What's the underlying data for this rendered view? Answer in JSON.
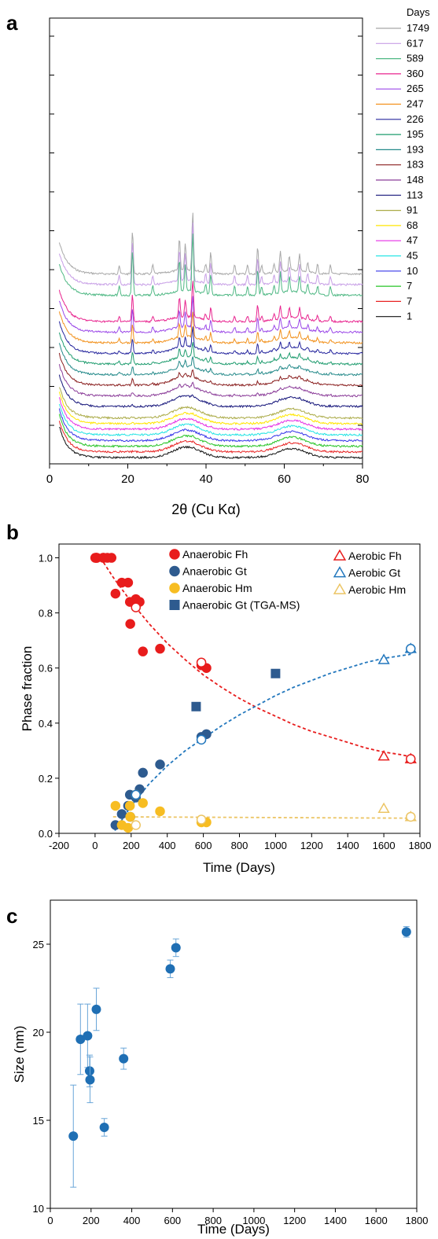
{
  "panels": [
    {
      "label": "a"
    },
    {
      "label": "b"
    },
    {
      "label": "c"
    }
  ],
  "chart_data": [
    {
      "type": "line",
      "panel": "a",
      "xlabel": "2θ (Cu Kα)",
      "ylabel": "",
      "xlim": [
        0,
        80
      ],
      "xticks": [
        0,
        20,
        40,
        60,
        80
      ],
      "legend_title": "Days",
      "legend_placement": "right",
      "series": [
        {
          "name": "1749",
          "color": "#a8a8a8"
        },
        {
          "name": "617",
          "color": "#c79ee6"
        },
        {
          "name": "589",
          "color": "#4fb884"
        },
        {
          "name": "360",
          "color": "#e8238e"
        },
        {
          "name": "265",
          "color": "#9b48e8"
        },
        {
          "name": "247",
          "color": "#f2911c"
        },
        {
          "name": "226",
          "color": "#26269e"
        },
        {
          "name": "195",
          "color": "#1e9c6e"
        },
        {
          "name": "193",
          "color": "#258a8a"
        },
        {
          "name": "183",
          "color": "#8a1f1f"
        },
        {
          "name": "148",
          "color": "#8b3d99"
        },
        {
          "name": "113",
          "color": "#15157a"
        },
        {
          "name": "91",
          "color": "#aaaa46"
        },
        {
          "name": "68",
          "color": "#ffe600"
        },
        {
          "name": "47",
          "color": "#e52ee5"
        },
        {
          "name": "45",
          "color": "#24e4e4"
        },
        {
          "name": "10",
          "color": "#3535e8"
        },
        {
          "name": "7",
          "color": "#27c427"
        },
        {
          "name": "7",
          "color": "#e82323"
        },
        {
          "name": "1",
          "color": "#111111"
        }
      ],
      "peaks_2theta": [
        17.8,
        21.2,
        26.4,
        33.2,
        34.7,
        36.6,
        39.9,
        41.2,
        47.3,
        50.6,
        53.2,
        54.2,
        57.4,
        59.0,
        61.3,
        63.9,
        66.0,
        68.5,
        71.8
      ]
    },
    {
      "type": "scatter",
      "panel": "b",
      "xlabel": "Time (Days)",
      "ylabel": "Phase fraction",
      "xlim": [
        -200,
        1800
      ],
      "ylim": [
        0,
        1.05
      ],
      "xticks": [
        -200,
        0,
        200,
        400,
        600,
        800,
        1000,
        1200,
        1400,
        1600,
        1800
      ],
      "yticks": [
        0.0,
        0.2,
        0.4,
        0.6,
        0.8,
        1.0
      ],
      "ytick_labels": [
        "0.0",
        "0.2",
        "0.4",
        "0.6",
        "0.8",
        "1.0"
      ],
      "legend_placement": "top-right",
      "series": [
        {
          "name": "Anaerobic Fh",
          "color": "#e81c1c",
          "marker": "circle",
          "fill": true,
          "x": [
            1,
            7,
            7,
            10,
            45,
            47,
            68,
            91,
            113,
            148,
            183,
            193,
            195,
            226,
            247,
            265,
            360,
            589,
            617
          ],
          "y": [
            1.0,
            1.0,
            1.0,
            1.0,
            1.0,
            1.0,
            1.0,
            1.0,
            0.87,
            0.91,
            0.91,
            0.84,
            0.76,
            0.85,
            0.84,
            0.66,
            0.67,
            0.61,
            0.6
          ]
        },
        {
          "name": "Anaerobic Gt",
          "color": "#2e5b8f",
          "marker": "circle",
          "fill": true,
          "x": [
            113,
            148,
            183,
            193,
            195,
            226,
            247,
            265,
            360,
            589,
            617
          ],
          "y": [
            0.03,
            0.07,
            0.1,
            0.14,
            0.06,
            0.13,
            0.16,
            0.22,
            0.25,
            0.35,
            0.36
          ]
        },
        {
          "name": "Anaerobic Hm",
          "color": "#f7bd22",
          "marker": "circle",
          "fill": true,
          "x": [
            113,
            148,
            183,
            193,
            195,
            226,
            265,
            360,
            589,
            617
          ],
          "y": [
            0.1,
            0.03,
            0.02,
            0.1,
            0.06,
            0.14,
            0.11,
            0.08,
            0.04,
            0.04
          ]
        },
        {
          "name": "Anaerobic Gt (TGA-MS)",
          "color": "#2e5b8f",
          "marker": "square",
          "fill": true,
          "x": [
            560,
            1000
          ],
          "y": [
            0.46,
            0.58
          ]
        },
        {
          "name": "Aerobic Fh",
          "color": "#e81c1c",
          "marker": "triangle",
          "fill": false,
          "x": [
            1600,
            1749
          ],
          "y": [
            0.28,
            0.27
          ]
        },
        {
          "name": "Aerobic Gt",
          "color": "#2277bd",
          "marker": "triangle",
          "fill": false,
          "x": [
            1600,
            1749
          ],
          "y": [
            0.63,
            0.67
          ]
        },
        {
          "name": "Aerobic Hm",
          "color": "#ecc565",
          "marker": "triangle",
          "fill": false,
          "x": [
            1600,
            1749
          ],
          "y": [
            0.09,
            0.06
          ]
        }
      ],
      "open_circles": [
        {
          "color": "#e81c1c",
          "x": [
            226,
            589,
            1749
          ],
          "y": [
            0.82,
            0.62,
            0.27
          ]
        },
        {
          "color": "#2277bd",
          "x": [
            226,
            589,
            1749
          ],
          "y": [
            0.14,
            0.34,
            0.67
          ]
        },
        {
          "color": "#ecc565",
          "x": [
            226,
            589,
            1749
          ],
          "y": [
            0.03,
            0.05,
            0.06
          ]
        }
      ],
      "fits": [
        {
          "color": "#e81c1c",
          "x": [
            30,
            100,
            200,
            300,
            400,
            500,
            600,
            700,
            800,
            900,
            1000,
            1100,
            1200,
            1300,
            1400,
            1500,
            1600,
            1700,
            1749
          ],
          "y": [
            1.0,
            0.93,
            0.84,
            0.76,
            0.69,
            0.63,
            0.575,
            0.53,
            0.49,
            0.455,
            0.425,
            0.395,
            0.37,
            0.35,
            0.33,
            0.31,
            0.295,
            0.285,
            0.278
          ]
        },
        {
          "color": "#2277bd",
          "x": [
            110,
            150,
            200,
            300,
            400,
            500,
            600,
            700,
            800,
            900,
            1000,
            1100,
            1200,
            1300,
            1400,
            1500,
            1600,
            1700,
            1749
          ],
          "y": [
            0.01,
            0.05,
            0.1,
            0.18,
            0.245,
            0.3,
            0.345,
            0.39,
            0.43,
            0.465,
            0.5,
            0.53,
            0.555,
            0.58,
            0.6,
            0.62,
            0.635,
            0.645,
            0.65
          ]
        },
        {
          "color": "#ecc565",
          "x": [
            100,
            1749
          ],
          "y": [
            0.06,
            0.055
          ]
        }
      ]
    },
    {
      "type": "scatter",
      "panel": "c",
      "xlabel": "Time (Days)",
      "ylabel": "Size (nm)",
      "xlim": [
        0,
        1800
      ],
      "ylim": [
        10,
        27.5
      ],
      "xticks": [
        0,
        200,
        400,
        600,
        800,
        1000,
        1200,
        1400,
        1600,
        1800
      ],
      "yticks": [
        10,
        15,
        20,
        25
      ],
      "series": [
        {
          "name": "",
          "color": "#1f6fb4",
          "marker": "circle",
          "fill": true,
          "x": [
            113,
            148,
            183,
            193,
            195,
            226,
            265,
            360,
            589,
            617,
            1749
          ],
          "y": [
            14.1,
            19.6,
            19.8,
            17.8,
            17.3,
            21.3,
            14.6,
            18.5,
            23.6,
            24.8,
            25.7
          ],
          "err": [
            2.9,
            2.0,
            1.8,
            0.9,
            1.3,
            1.2,
            0.5,
            0.6,
            0.5,
            0.5,
            0.3
          ]
        }
      ]
    }
  ]
}
